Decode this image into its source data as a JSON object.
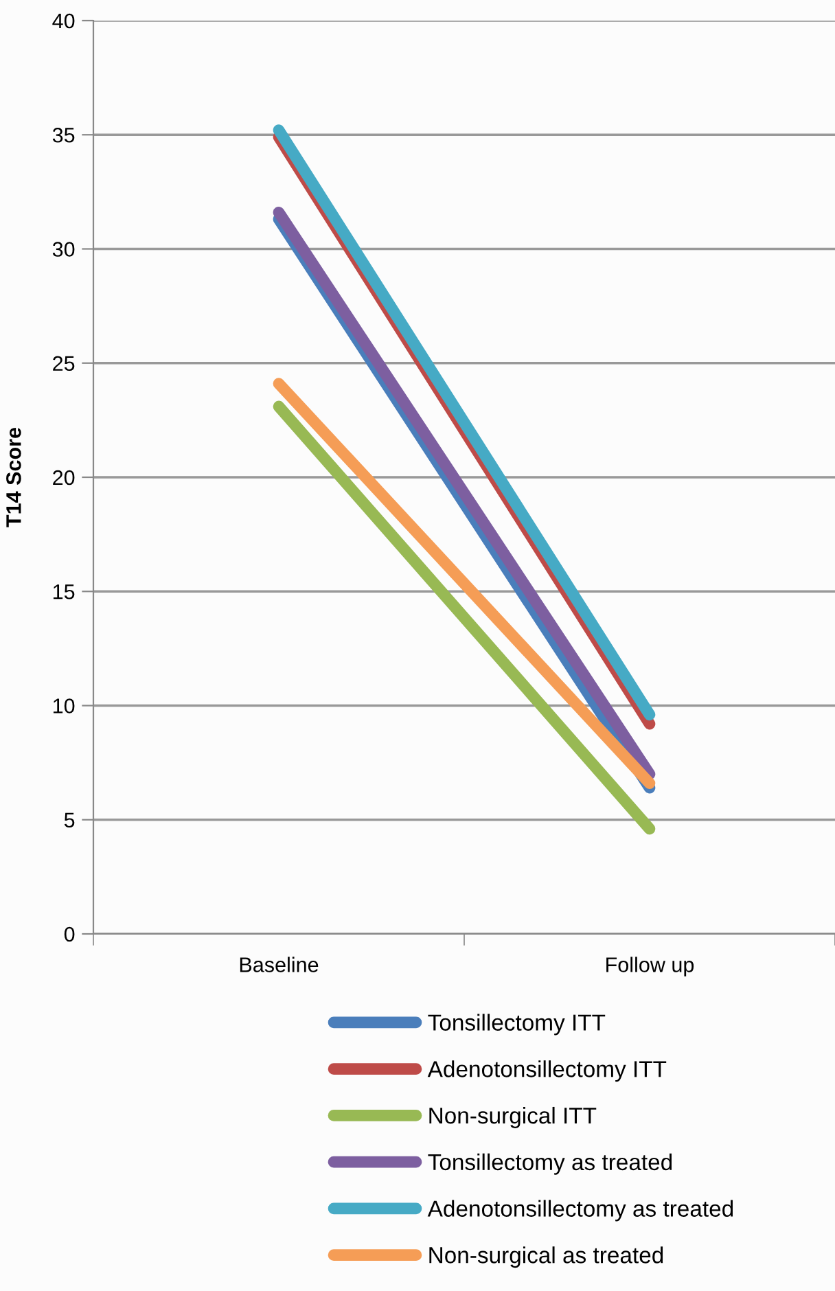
{
  "chart_data": {
    "type": "line",
    "ylabel": "T14 Score",
    "categories": [
      "Baseline",
      "Follow up"
    ],
    "ylim": [
      0,
      40
    ],
    "yticks": [
      0,
      5,
      10,
      15,
      20,
      25,
      30,
      35,
      40
    ],
    "grid": "y",
    "legend": "bottom",
    "marker": "none",
    "line_style": "solid",
    "series": [
      {
        "name": "Tonsillectomy ITT",
        "color": "#4a7ebb",
        "values": [
          31.3,
          6.4
        ]
      },
      {
        "name": "Adenotonsillectomy ITT",
        "color": "#be4b48",
        "values": [
          34.9,
          9.2
        ]
      },
      {
        "name": "Non-surgical ITT",
        "color": "#98b954",
        "values": [
          23.1,
          4.6
        ]
      },
      {
        "name": "Tonsillectomy as treated",
        "color": "#7d5fa0",
        "values": [
          31.6,
          7.0
        ]
      },
      {
        "name": "Adenotonsillectomy as treated",
        "color": "#46aac5",
        "values": [
          35.2,
          9.6
        ]
      },
      {
        "name": "Non-surgical as treated",
        "color": "#f59d56",
        "values": [
          24.1,
          6.6
        ]
      }
    ]
  }
}
